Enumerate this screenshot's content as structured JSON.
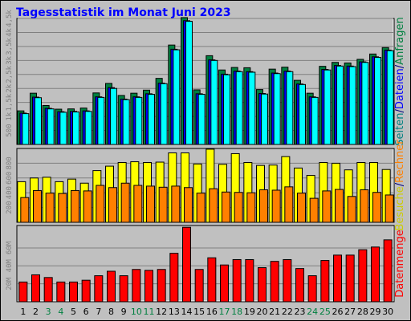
{
  "chart_data": {
    "type": "bar",
    "title": "Tagesstatistik im Monat Juni 2023",
    "days": [
      "1",
      "2",
      "3",
      "4",
      "5",
      "6",
      "7",
      "8",
      "9",
      "10",
      "11",
      "12",
      "13",
      "14",
      "15",
      "16",
      "17",
      "18",
      "19",
      "20",
      "21",
      "22",
      "23",
      "24",
      "25",
      "26",
      "27",
      "28",
      "29",
      "30"
    ],
    "weekend_days": [
      "3",
      "4",
      "10",
      "11",
      "17",
      "18",
      "24",
      "25"
    ],
    "panels": [
      {
        "id": "visits",
        "ylim": [
          0,
          4500
        ],
        "ticks": [
          "500",
          "1k",
          "1,5k",
          "2k",
          "2,5k",
          "3k",
          "3,5k",
          "4k",
          "4,5k"
        ],
        "tick_values": [
          500,
          1000,
          1500,
          2000,
          2500,
          3000,
          3500,
          4000,
          4500
        ],
        "side_label_parts": [
          {
            "text": "Seiten",
            "color": "#008080"
          },
          {
            "text": "/",
            "color": "#000080"
          },
          {
            "text": "Dateien",
            "color": "#0000ff"
          },
          {
            "text": "/",
            "color": "#000080"
          },
          {
            "text": "Anfragen",
            "color": "#008040"
          }
        ],
        "series": [
          {
            "name": "Anfragen",
            "color": "#008040",
            "values": [
              1200,
              1830,
              1390,
              1260,
              1270,
              1300,
              1840,
              2180,
              1750,
              1830,
              1940,
              2360,
              3550,
              4530,
              1950,
              3170,
              2660,
              2750,
              2740,
              1960,
              2690,
              2760,
              2290,
              1830,
              2790,
              2930,
              2910,
              3040,
              3230,
              3460
            ]
          },
          {
            "name": "Dateien",
            "color": "#0000ff",
            "values": [
              1120,
              1690,
              1290,
              1170,
              1180,
              1200,
              1700,
              2030,
              1620,
              1700,
              1810,
              2190,
              3400,
              4420,
              1810,
              3020,
              2510,
              2620,
              2600,
              1820,
              2550,
              2620,
              2160,
              1700,
              2680,
              2820,
              2800,
              2950,
              3130,
              3370
            ]
          },
          {
            "name": "Seiten",
            "color": "#00ffff",
            "values": [
              1100,
              1670,
              1270,
              1150,
              1160,
              1180,
              1680,
              2000,
              1600,
              1680,
              1790,
              2170,
              3380,
              4400,
              1790,
              3000,
              2490,
              2600,
              2580,
              1800,
              2530,
              2600,
              2140,
              1680,
              2660,
              2800,
              2780,
              2930,
              3110,
              3350
            ]
          }
        ]
      },
      {
        "id": "visitors",
        "ylim": [
          0,
          1000
        ],
        "ticks": [
          "200",
          "400",
          "600",
          "800"
        ],
        "tick_values": [
          200,
          400,
          600,
          800
        ],
        "side_label_parts": [
          {
            "text": "Besuche",
            "color": "#cccc00"
          },
          {
            "text": "/",
            "color": "#000080"
          },
          {
            "text": "Rechner",
            "color": "#ff8000"
          }
        ],
        "series": [
          {
            "name": "Besuche",
            "color": "#ffff00",
            "values": [
              550,
              600,
              610,
              550,
              585,
              530,
              700,
              760,
              810,
              820,
              810,
              815,
              940,
              940,
              790,
              990,
              785,
              930,
              810,
              770,
              775,
              890,
              735,
              635,
              810,
              800,
              710,
              810,
              810,
              715
            ]
          },
          {
            "name": "Rechner",
            "color": "#ff8000",
            "values": [
              335,
              430,
              395,
              390,
              430,
              425,
              500,
              470,
              530,
              500,
              490,
              475,
              490,
              470,
              395,
              455,
              410,
              405,
              400,
              440,
              435,
              480,
              395,
              325,
              425,
              445,
              350,
              440,
              405,
              370
            ]
          }
        ]
      },
      {
        "id": "volume",
        "ylim": [
          0,
          85
        ],
        "ticks": [
          "20M",
          "40M",
          "60M"
        ],
        "tick_values": [
          20,
          40,
          60
        ],
        "side_label_parts": [
          {
            "text": "Datenmenge",
            "color": "#ff0000"
          }
        ],
        "series": [
          {
            "name": "Datenmenge",
            "color": "#ff0000",
            "values": [
              22,
              30,
              27,
              22,
              22,
              24,
              29,
              34,
              29,
              36,
              35,
              36,
              54,
              83,
              36,
              49,
              41,
              47,
              47,
              38,
              45,
              47,
              37,
              29,
              46,
              52,
              52,
              58,
              61,
              69
            ]
          }
        ]
      }
    ],
    "colors": {
      "title": "#0000ff",
      "plot_bg": "#c0c0c0",
      "weekday_label": "#000000",
      "weekend_label": "#008040",
      "bar_outline": "#000000"
    }
  }
}
